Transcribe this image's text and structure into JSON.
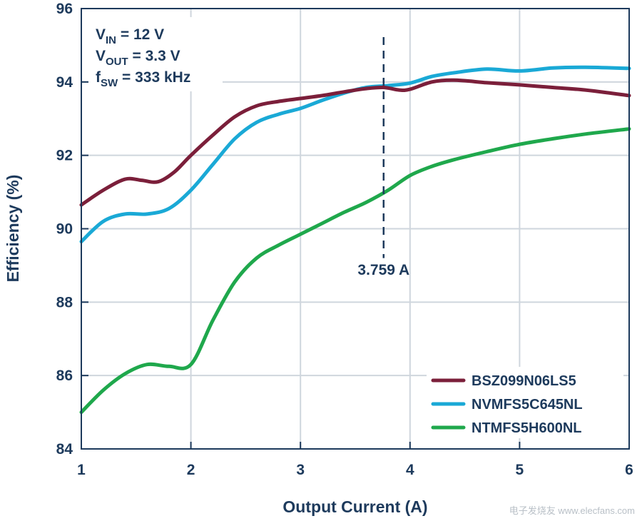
{
  "chart_data": {
    "type": "line",
    "title": "",
    "xlabel": "Output Current (A)",
    "ylabel": "Efficiency (%)",
    "xlim": [
      1,
      6
    ],
    "ylim": [
      84,
      96
    ],
    "xticks": [
      "1",
      "2",
      "3",
      "4",
      "5",
      "6"
    ],
    "yticks": [
      "84",
      "86",
      "88",
      "90",
      "92",
      "94",
      "96"
    ],
    "grid": true,
    "conditions": {
      "vin_sym": "V",
      "vin_sub": "IN",
      "vin_val": " = 12 V",
      "vout_sym": "V",
      "vout_sub": "OUT",
      "vout_val": " = 3.3 V",
      "fsw_sym": "f",
      "fsw_sub": "SW",
      "fsw_val": " = 333 kHz"
    },
    "marker": {
      "x": 3.759,
      "label": "3.759 A"
    },
    "legend_position": "bottom-right",
    "series": [
      {
        "name": "BSZ099N06LS5",
        "color": "#7b1f3a",
        "x": [
          1,
          1.2,
          1.4,
          1.55,
          1.7,
          1.85,
          2,
          2.2,
          2.4,
          2.6,
          2.8,
          3,
          3.2,
          3.4,
          3.6,
          3.759,
          3.9,
          4,
          4.2,
          4.4,
          4.7,
          5,
          5.3,
          5.6,
          6
        ],
        "y": [
          90.65,
          91.05,
          91.35,
          91.32,
          91.28,
          91.55,
          92.0,
          92.55,
          93.05,
          93.35,
          93.47,
          93.55,
          93.63,
          93.73,
          93.82,
          93.85,
          93.78,
          93.8,
          94.0,
          94.05,
          93.98,
          93.92,
          93.85,
          93.78,
          93.63
        ]
      },
      {
        "name": "NVMFS5C645NL",
        "color": "#1aa9d6",
        "x": [
          1,
          1.2,
          1.4,
          1.6,
          1.8,
          2,
          2.2,
          2.4,
          2.6,
          2.8,
          3,
          3.2,
          3.4,
          3.6,
          3.8,
          4,
          4.2,
          4.4,
          4.7,
          5,
          5.3,
          5.6,
          6
        ],
        "y": [
          89.65,
          90.2,
          90.4,
          90.4,
          90.55,
          91.05,
          91.75,
          92.45,
          92.9,
          93.12,
          93.28,
          93.5,
          93.7,
          93.85,
          93.9,
          93.97,
          94.15,
          94.25,
          94.35,
          94.3,
          94.38,
          94.4,
          94.37
        ]
      },
      {
        "name": "NTMFS5H600NL",
        "color": "#1fa84c",
        "x": [
          1,
          1.2,
          1.4,
          1.6,
          1.8,
          2,
          2.2,
          2.4,
          2.6,
          2.8,
          3,
          3.2,
          3.4,
          3.6,
          3.8,
          4,
          4.2,
          4.4,
          4.7,
          5,
          5.3,
          5.6,
          6
        ],
        "y": [
          85.0,
          85.6,
          86.05,
          86.3,
          86.25,
          86.3,
          87.5,
          88.55,
          89.2,
          89.55,
          89.85,
          90.15,
          90.45,
          90.72,
          91.05,
          91.45,
          91.7,
          91.88,
          92.1,
          92.3,
          92.45,
          92.58,
          92.72
        ]
      }
    ]
  },
  "watermark": "电子发烧友 www.elecfans.com"
}
